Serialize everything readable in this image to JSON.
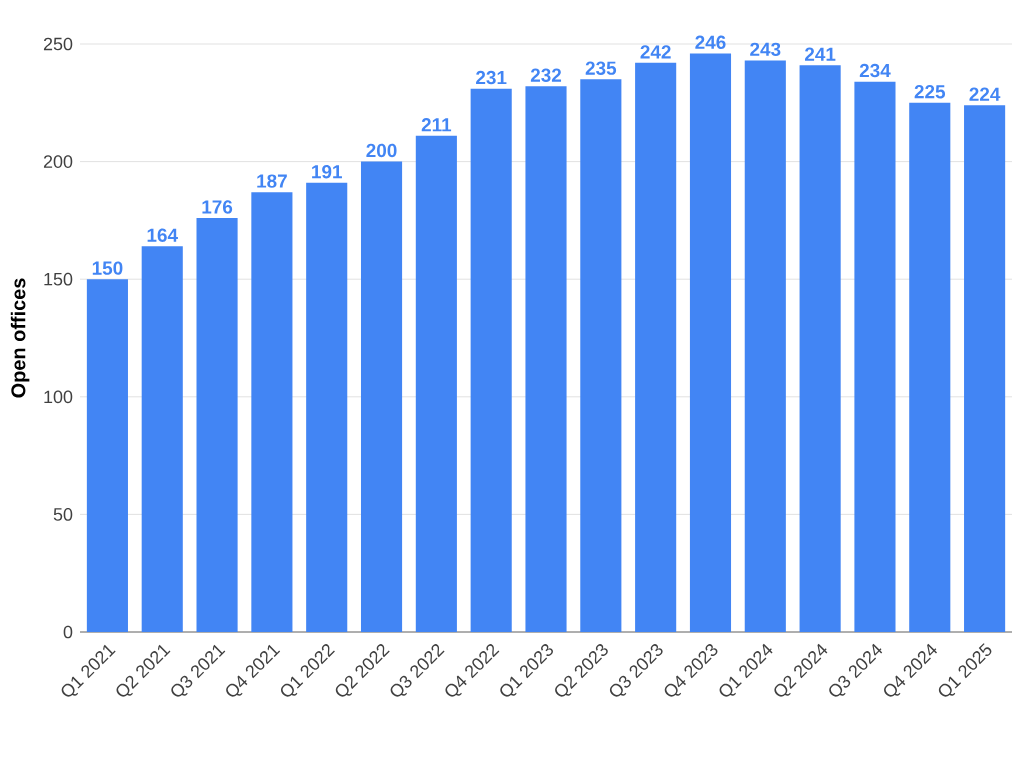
{
  "chart_data": {
    "type": "bar",
    "ylabel": "Open offices",
    "categories": [
      "Q1 2021",
      "Q2 2021",
      "Q3 2021",
      "Q4 2021",
      "Q1 2022",
      "Q2 2022",
      "Q3 2022",
      "Q4 2022",
      "Q1 2023",
      "Q2 2023",
      "Q3 2023",
      "Q4 2023",
      "Q1 2024",
      "Q2 2024",
      "Q3 2024",
      "Q4 2024",
      "Q1 2025"
    ],
    "values": [
      150,
      164,
      176,
      187,
      191,
      200,
      211,
      231,
      232,
      235,
      242,
      246,
      243,
      241,
      234,
      225,
      224
    ],
    "color": "#4285f4",
    "ylim": [
      0,
      250
    ],
    "yticks": [
      0,
      50,
      100,
      150,
      200,
      250
    ],
    "grid": "y",
    "data_labels": true
  }
}
